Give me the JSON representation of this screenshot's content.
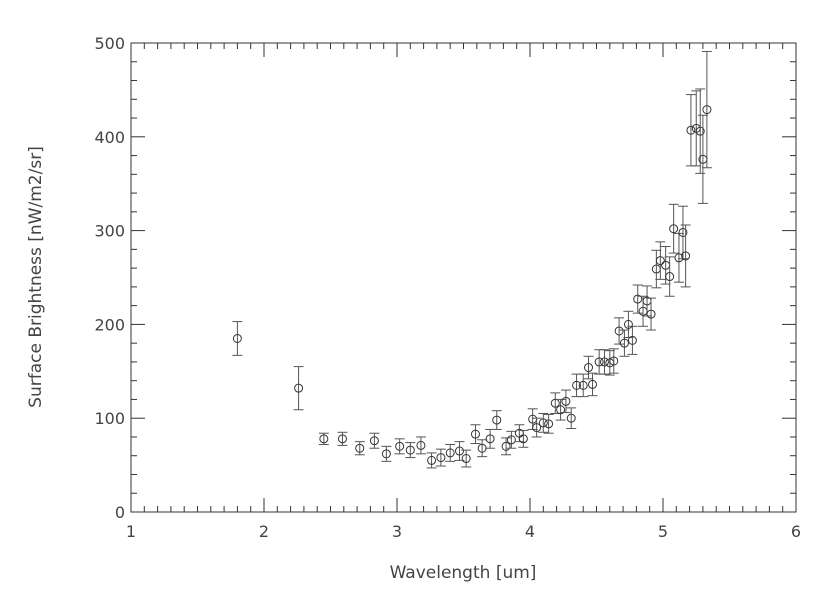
{
  "chart_data": {
    "type": "scatter",
    "title": "",
    "xlabel": "Wavelength [um]",
    "ylabel": "Surface Brightness [nW/m2/sr]",
    "xlim": [
      1,
      6
    ],
    "ylim": [
      0,
      500
    ],
    "xticks": [
      "1",
      "2",
      "3",
      "4",
      "5",
      "6"
    ],
    "yticks": [
      "0",
      "100",
      "200",
      "300",
      "400",
      "500"
    ],
    "grid": false,
    "marker": "open-circle-with-error-bars",
    "colors": {
      "axis": "#333333",
      "marker": "#333333",
      "errorbar": "#555555"
    },
    "points": [
      {
        "x": 1.8,
        "y": 185,
        "err": 18
      },
      {
        "x": 2.26,
        "y": 132,
        "err": 23
      },
      {
        "x": 2.45,
        "y": 78,
        "err": 6
      },
      {
        "x": 2.59,
        "y": 78,
        "err": 7
      },
      {
        "x": 2.72,
        "y": 68,
        "err": 7
      },
      {
        "x": 2.83,
        "y": 76,
        "err": 8
      },
      {
        "x": 2.92,
        "y": 62,
        "err": 8
      },
      {
        "x": 3.02,
        "y": 70,
        "err": 8
      },
      {
        "x": 3.1,
        "y": 66,
        "err": 8
      },
      {
        "x": 3.18,
        "y": 71,
        "err": 9
      },
      {
        "x": 3.26,
        "y": 55,
        "err": 8
      },
      {
        "x": 3.33,
        "y": 58,
        "err": 9
      },
      {
        "x": 3.4,
        "y": 63,
        "err": 9
      },
      {
        "x": 3.47,
        "y": 65,
        "err": 10
      },
      {
        "x": 3.52,
        "y": 57,
        "err": 9
      },
      {
        "x": 3.59,
        "y": 83,
        "err": 10
      },
      {
        "x": 3.64,
        "y": 68,
        "err": 9
      },
      {
        "x": 3.7,
        "y": 78,
        "err": 10
      },
      {
        "x": 3.75,
        "y": 98,
        "err": 10
      },
      {
        "x": 3.82,
        "y": 70,
        "err": 9
      },
      {
        "x": 3.86,
        "y": 77,
        "err": 9
      },
      {
        "x": 3.92,
        "y": 84,
        "err": 9
      },
      {
        "x": 3.95,
        "y": 78,
        "err": 9
      },
      {
        "x": 4.02,
        "y": 99,
        "err": 11
      },
      {
        "x": 4.05,
        "y": 90,
        "err": 10
      },
      {
        "x": 4.1,
        "y": 95,
        "err": 10
      },
      {
        "x": 4.14,
        "y": 94,
        "err": 10
      },
      {
        "x": 4.19,
        "y": 116,
        "err": 11
      },
      {
        "x": 4.23,
        "y": 109,
        "err": 11
      },
      {
        "x": 4.27,
        "y": 118,
        "err": 12
      },
      {
        "x": 4.31,
        "y": 100,
        "err": 11
      },
      {
        "x": 4.35,
        "y": 135,
        "err": 12
      },
      {
        "x": 4.4,
        "y": 135,
        "err": 12
      },
      {
        "x": 4.44,
        "y": 154,
        "err": 12
      },
      {
        "x": 4.47,
        "y": 136,
        "err": 12
      },
      {
        "x": 4.52,
        "y": 160,
        "err": 13
      },
      {
        "x": 4.56,
        "y": 160,
        "err": 13
      },
      {
        "x": 4.6,
        "y": 159,
        "err": 13
      },
      {
        "x": 4.63,
        "y": 161,
        "err": 13
      },
      {
        "x": 4.67,
        "y": 193,
        "err": 14
      },
      {
        "x": 4.71,
        "y": 180,
        "err": 14
      },
      {
        "x": 4.74,
        "y": 200,
        "err": 14
      },
      {
        "x": 4.77,
        "y": 183,
        "err": 15
      },
      {
        "x": 4.81,
        "y": 227,
        "err": 15
      },
      {
        "x": 4.85,
        "y": 214,
        "err": 16
      },
      {
        "x": 4.88,
        "y": 225,
        "err": 16
      },
      {
        "x": 4.91,
        "y": 211,
        "err": 17
      },
      {
        "x": 4.95,
        "y": 259,
        "err": 20
      },
      {
        "x": 4.98,
        "y": 268,
        "err": 20
      },
      {
        "x": 5.02,
        "y": 263,
        "err": 20
      },
      {
        "x": 5.05,
        "y": 251,
        "err": 21
      },
      {
        "x": 5.08,
        "y": 302,
        "err": 26
      },
      {
        "x": 5.12,
        "y": 271,
        "err": 26
      },
      {
        "x": 5.15,
        "y": 298,
        "err": 28
      },
      {
        "x": 5.17,
        "y": 273,
        "err": 33
      },
      {
        "x": 5.21,
        "y": 407,
        "err": 38
      },
      {
        "x": 5.25,
        "y": 409,
        "err": 40
      },
      {
        "x": 5.28,
        "y": 406,
        "err": 45
      },
      {
        "x": 5.3,
        "y": 376,
        "err": 47
      },
      {
        "x": 5.33,
        "y": 429,
        "err": 62
      }
    ]
  }
}
